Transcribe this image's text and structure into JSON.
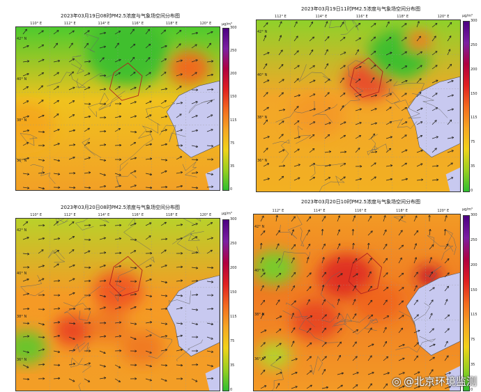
{
  "colorbar": {
    "unit": "μg/m³",
    "ticks": [
      "300",
      "250",
      "200",
      "150",
      "115",
      "75",
      "35",
      "0"
    ],
    "colors": [
      "#4b0082",
      "#7b1fa2",
      "#b00040",
      "#e02020",
      "#f36a1e",
      "#f5a623",
      "#f0d21a",
      "#9ad020",
      "#2fbf2f"
    ]
  },
  "panels": [
    {
      "title": "2023年03月19日08时PM2.5浓度与气象场空间分布图",
      "lons": [
        "110° E",
        "112° E",
        "114° E",
        "116° E",
        "118° E",
        "120° E"
      ],
      "lats": [
        "42° N",
        "40° N",
        "38° N",
        "36° N"
      ],
      "pollution_level": "low-north"
    },
    {
      "title": "2023年03月19日11时PM2.5浓度与气象场空间分布图",
      "lons": [
        "112° E",
        "114° E",
        "116° E",
        "118° E",
        "120° E"
      ],
      "lats": [
        "42° N",
        "40° N",
        "38° N",
        "36° N"
      ],
      "pollution_level": "moderate"
    },
    {
      "title": "2023年03月20日08时PM2.5浓度与气象场空间分布图",
      "lons": [
        "110° E",
        "112° E",
        "114° E",
        "116° E",
        "118° E",
        "120° E"
      ],
      "lats": [
        "42° N",
        "40° N",
        "38° N",
        "36° N"
      ],
      "pollution_level": "elevated"
    },
    {
      "title": "2023年03月20日10时PM2.5浓度与气象场空间分布图",
      "lons": [
        "112° E",
        "114° E",
        "116° E",
        "118° E",
        "120° E"
      ],
      "lats": [
        "42° N",
        "40° N",
        "38° N",
        "36° N"
      ],
      "pollution_level": "high"
    }
  ],
  "watermark": {
    "logo": "weibo-logo",
    "text": "@北京环境监测"
  }
}
